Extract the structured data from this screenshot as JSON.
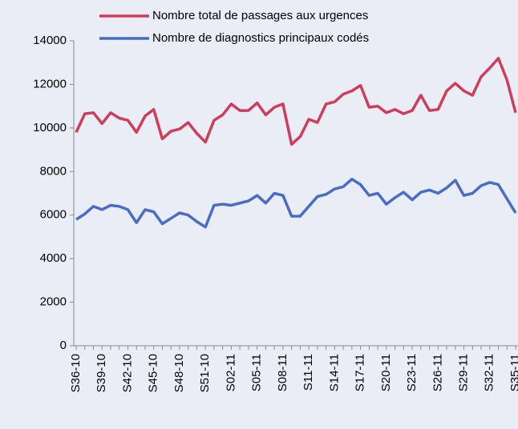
{
  "chart_data": {
    "type": "line",
    "categories": [
      "S36-10",
      null,
      null,
      "S39-10",
      null,
      null,
      "S42-10",
      null,
      null,
      "S45-10",
      null,
      null,
      "S48-10",
      null,
      null,
      "S51-10",
      null,
      null,
      "S02-11",
      null,
      null,
      "S05-11",
      null,
      null,
      "S08-11",
      null,
      null,
      "S11-11",
      null,
      null,
      "S14-11",
      null,
      null,
      "S17-11",
      null,
      null,
      "S20-11",
      null,
      null,
      "S23-11",
      null,
      null,
      "S26-11",
      null,
      null,
      "S29-11",
      null,
      null,
      "S32-11",
      null,
      null,
      "S35-11"
    ],
    "series": [
      {
        "name": "Nombre total de passages aux urgences",
        "color": "#d03c5c",
        "values": [
          9800,
          10650,
          10700,
          10200,
          10700,
          10450,
          10350,
          9800,
          10550,
          10850,
          9500,
          9850,
          9950,
          10250,
          9750,
          9350,
          10350,
          10600,
          11100,
          10800,
          10800,
          11150,
          10600,
          10950,
          11100,
          9250,
          9600,
          10400,
          10250,
          11100,
          11200,
          11550,
          11700,
          11950,
          10950,
          11000,
          10700,
          10850,
          10650,
          10800,
          11500,
          10800,
          10850,
          11700,
          12050,
          11700,
          11500,
          12350,
          12750,
          13200,
          12200,
          10700
        ]
      },
      {
        "name": "Nombre de diagnostics principaux codés",
        "color": "#4a6cc4",
        "values": [
          5800,
          6050,
          6400,
          6250,
          6450,
          6400,
          6250,
          5650,
          6250,
          6150,
          5600,
          5850,
          6100,
          6000,
          5700,
          5450,
          6450,
          6500,
          6450,
          6550,
          6650,
          6900,
          6550,
          7000,
          6900,
          5950,
          5950,
          6400,
          6850,
          6950,
          7200,
          7300,
          7650,
          7400,
          6900,
          7000,
          6500,
          6800,
          7050,
          6700,
          7050,
          7150,
          7000,
          7250,
          7600,
          6900,
          7000,
          7350,
          7500,
          7400,
          6750,
          6100
        ]
      }
    ],
    "ylim": [
      0,
      14000
    ],
    "yticks": [
      0,
      2000,
      4000,
      6000,
      8000,
      10000,
      12000,
      14000
    ]
  }
}
